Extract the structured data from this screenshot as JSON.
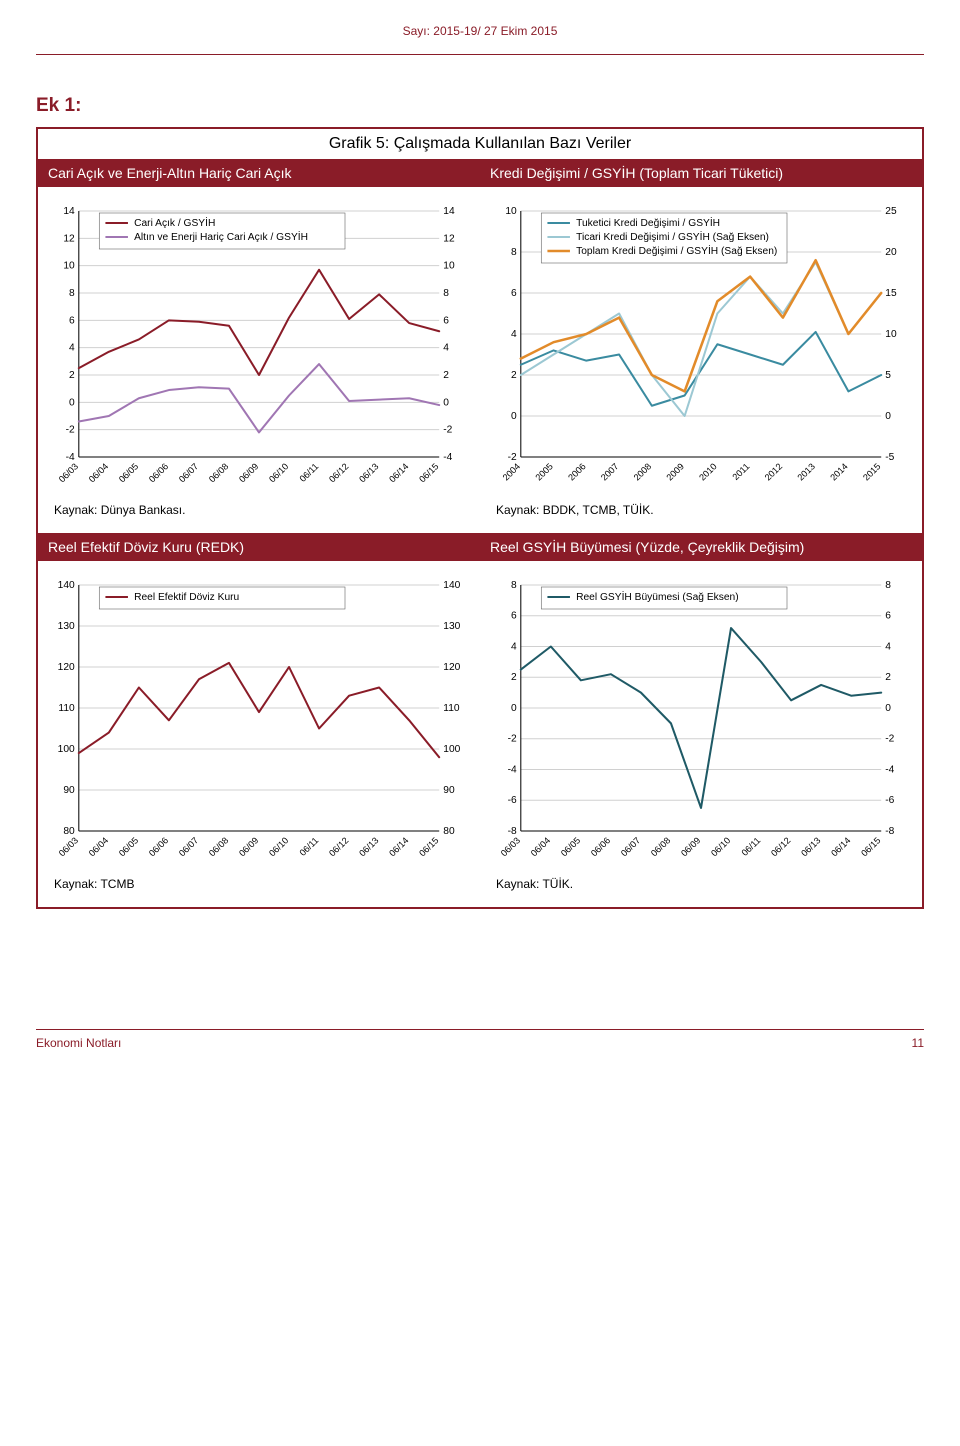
{
  "header": {
    "issue": "Sayı: 2015-19/ 27 Ekim 2015",
    "color": "#8a1c28"
  },
  "section_title": "Ek 1:",
  "panel_title": "Grafik 5: Çalışmada Kullanılan Bazı Veriler",
  "panel_color": "#8a1c28",
  "chart_a": {
    "title": "Cari Açık ve Enerji-Altın Hariç Cari Açık",
    "source": "Kaynak:  Dünya Bankası.",
    "ylim": [
      -4,
      14
    ],
    "ytick_step": 2,
    "xlabels": [
      "06/03",
      "06/04",
      "06/05",
      "06/06",
      "06/07",
      "06/08",
      "06/09",
      "06/10",
      "06/11",
      "06/12",
      "06/13",
      "06/14",
      "06/15"
    ],
    "grid_color": "#d0d0d0",
    "series": [
      {
        "name": "Cari Açık / GSYİH",
        "color": "#8a1c28",
        "width": 2,
        "values": [
          2.5,
          3.7,
          4.6,
          6.0,
          5.9,
          5.6,
          2.0,
          6.2,
          9.7,
          6.1,
          7.9,
          5.8,
          5.2
        ]
      },
      {
        "name": "Altın ve Enerji Hariç Cari Açık / GSYİH",
        "color": "#a076b3",
        "width": 2,
        "values": [
          -1.4,
          -1.0,
          0.3,
          0.9,
          1.1,
          1.0,
          -2.2,
          0.5,
          2.8,
          0.1,
          0.2,
          0.3,
          -0.2
        ]
      }
    ],
    "xlabel_rotate": -45
  },
  "chart_b": {
    "title": "Kredi Değişimi / GSYİH (Toplam Ticari Tüketici)",
    "source": "Kaynak:  BDDK, TCMB, TÜİK.",
    "ylim_left": [
      -2,
      10
    ],
    "ytick_step_left": 2,
    "ylim_right": [
      -5,
      25
    ],
    "ytick_step_right": 5,
    "xlabels": [
      "2004",
      "2005",
      "2006",
      "2007",
      "2008",
      "2009",
      "2010",
      "2011",
      "2012",
      "2013",
      "2014",
      "2015"
    ],
    "grid_color": "#d0d0d0",
    "series": [
      {
        "name": "Tuketici Kredi Değişimi / GSYİH",
        "axis": "left",
        "color": "#3a8ba0",
        "width": 2,
        "values": [
          2.5,
          3.2,
          2.7,
          3.0,
          0.5,
          1.0,
          3.5,
          3.0,
          2.5,
          4.1,
          1.2,
          2.0
        ]
      },
      {
        "name": "Ticari Kredi Değişimi / GSYİH (Sağ Eksen)",
        "axis": "left",
        "color": "#9cc8d3",
        "width": 2,
        "values": [
          2.0,
          3.0,
          4.0,
          5.0,
          2.0,
          0.0,
          5.0,
          6.8,
          5.0,
          7.5,
          4.0,
          6.0
        ]
      },
      {
        "name": "Toplam Kredi Değişimi / GSYİH (Sağ Eksen)",
        "axis": "right",
        "color": "#e28b2a",
        "width": 2.5,
        "values": [
          7,
          9,
          10,
          12,
          5,
          3,
          14,
          17,
          12,
          19,
          10,
          15
        ]
      }
    ],
    "xlabel_rotate": -45
  },
  "chart_c": {
    "title": "Reel Efektif Döviz Kuru (REDK)",
    "source": "Kaynak:  TCMB",
    "ylim": [
      80,
      140
    ],
    "ytick_step": 10,
    "xlabels": [
      "06/03",
      "06/04",
      "06/05",
      "06/06",
      "06/07",
      "06/08",
      "06/09",
      "06/10",
      "06/11",
      "06/12",
      "06/13",
      "06/14",
      "06/15"
    ],
    "grid_color": "#d0d0d0",
    "series": [
      {
        "name": "Reel Efektif Döviz Kuru",
        "color": "#8a1c28",
        "width": 2,
        "values": [
          99,
          104,
          115,
          107,
          117,
          121,
          109,
          120,
          105,
          113,
          115,
          107,
          98
        ]
      }
    ],
    "xlabel_rotate": -45
  },
  "chart_d": {
    "title": "Reel GSYİH Büyümesi (Yüzde, Çeyreklik Değişim)",
    "source": "Kaynak:  TÜİK.",
    "ylim": [
      -8,
      8
    ],
    "ytick_step": 2,
    "xlabels": [
      "06/03",
      "06/04",
      "06/05",
      "06/06",
      "06/07",
      "06/08",
      "06/09",
      "06/10",
      "06/11",
      "06/12",
      "06/13",
      "06/14",
      "06/15"
    ],
    "grid_color": "#d0d0d0",
    "series": [
      {
        "name": "Reel GSYİH Büyümesi (Sağ Eksen)",
        "color": "#1f5a66",
        "width": 2,
        "values": [
          2.5,
          4.0,
          1.8,
          2.2,
          1.0,
          -1.0,
          -6.5,
          5.2,
          3.0,
          0.5,
          1.5,
          0.8,
          1.0
        ]
      }
    ],
    "xlabel_rotate": -45
  },
  "footer": {
    "left": "Ekonomi Notları",
    "page": "11",
    "color": "#8a1c28"
  }
}
